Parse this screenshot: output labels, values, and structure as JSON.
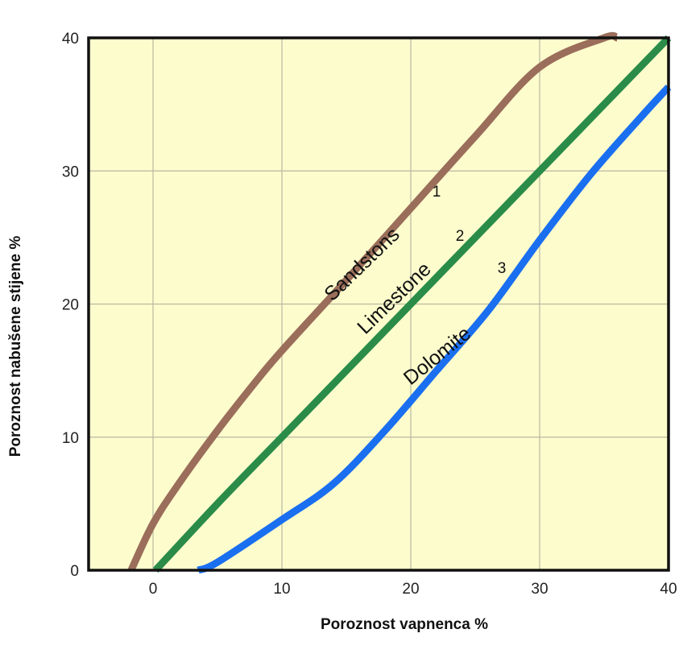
{
  "chart_data": {
    "type": "line",
    "xlabel": "Poroznost vapnenca %",
    "ylabel": "Poroznost nabušene stijene %",
    "xlim": [
      -5,
      40
    ],
    "ylim": [
      0,
      40
    ],
    "xticks": [
      0,
      10,
      20,
      30,
      40
    ],
    "yticks": [
      0,
      10,
      20,
      30,
      40
    ],
    "grid": true,
    "background_color": "#fdfccd",
    "series": [
      {
        "name": "Sandstons",
        "number": "1",
        "color": "#9a6e5a",
        "x": [
          -1.7,
          0,
          2,
          5,
          8,
          10,
          15,
          20,
          25,
          30,
          35,
          36
        ],
        "y": [
          0,
          3.5,
          6.5,
          10.5,
          14.2,
          16.5,
          21.8,
          27.2,
          32.6,
          37.8,
          40,
          40
        ]
      },
      {
        "name": "Limestone",
        "number": "2",
        "color": "#2a8c48",
        "x": [
          0.2,
          5,
          10,
          15,
          20,
          25,
          30,
          35,
          40
        ],
        "y": [
          0,
          5,
          10,
          15,
          20,
          25,
          30,
          35,
          40
        ]
      },
      {
        "name": "Dolomite",
        "number": "3",
        "color": "#1a6ff0",
        "x": [
          3.5,
          5,
          10,
          14,
          18,
          22,
          26,
          30,
          34,
          38,
          40
        ],
        "y": [
          0,
          0.6,
          3.8,
          6.5,
          10.5,
          15,
          19.5,
          24.8,
          29.8,
          34.2,
          36.3
        ]
      }
    ]
  }
}
